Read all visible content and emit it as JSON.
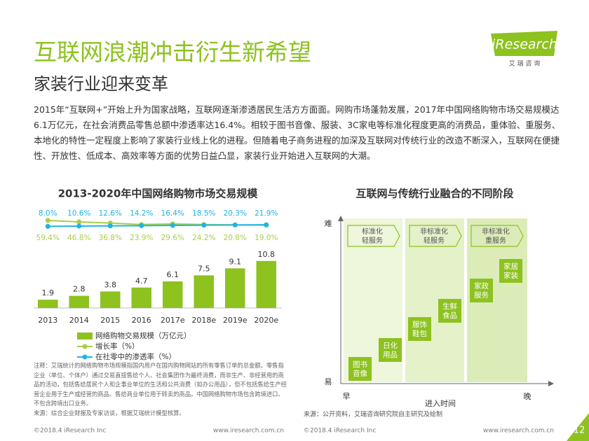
{
  "header": {
    "title": "互联网浪潮冲击衍生新希望",
    "subtitle": "家装行业迎来变革",
    "logo": "iResearch",
    "logo_sub": "艾 瑞 咨 询"
  },
  "intro": "2015年“互联网+”开始上升为国家战略，互联网逐渐渗透居民生活方方面面。网购市场蓬勃发展，2017年中国网络购物市场交易规模达6.1万亿元，在社会消费品零售总额中渗透率达16.4%。相较于图书音像、服装、3C家电等标准化程度更高的消费品，重体验、重服务、本地化的特性一定程度上影响了家装行业线上化的进程。但随着电子商务进程的加深及互联网对传统行业的改造不断深入，互联网在便捷性、开放性、低成本、高效率等方面的优势日益凸显，家装行业开始进入互联网的大潮。",
  "chart_data": {
    "type": "bar",
    "title": "2013-2020年中国网络购物市场交易规模",
    "categories": [
      "2013",
      "2014",
      "2015",
      "2016",
      "2017e",
      "2018e",
      "2019e",
      "2020e"
    ],
    "ylim": [
      0,
      22.5
    ],
    "y2lim": [
      -700,
      150
    ],
    "series": [
      {
        "name": "网络购物交易规模（万亿元）",
        "color": "#8dc21f",
        "values": [
          1.9,
          2.8,
          3.8,
          4.7,
          6.1,
          7.5,
          9.1,
          10.8
        ]
      },
      {
        "name": "增长率（%）",
        "color": "#a9cf45",
        "axis": "y2",
        "values": [
          59.4,
          46.8,
          36.8,
          23.9,
          29.6,
          24.2,
          20.8,
          19.0
        ],
        "value_labels": [
          "59.4%",
          "46.8%",
          "36.8%",
          "23.9%",
          "29.6%",
          "24.2%",
          "20.8%",
          "19.0%"
        ]
      },
      {
        "name": "在社零中的渗透率（%）",
        "color": "#1eb4e4",
        "axis": "y2",
        "values": [
          8.0,
          10.6,
          12.6,
          14.2,
          16.4,
          18.5,
          20.3,
          21.9
        ],
        "value_labels": [
          "8.0%",
          "10.6%",
          "12.6%",
          "14.2%",
          "16.4%",
          "18.5%",
          "20.3%",
          "21.9%"
        ]
      }
    ]
  },
  "notes": [
    "注释：艾瑞统计的网络购物市场规模指国内用户在国内购物网站的所有零售订单的总金额。零售指企业（单位、个体户）通过交易直接售给个人、社会集团作为最终消费，而非生产、非经营用的商品的活动，包括售给居民个人和企事业单位的生活和公共消费（如办公用品），但不包括售给生产经营企业用于生产或经营的商品、售给商业单位用于转卖的商品。中国网络购物市场包含跨境进口、不包含跨境出口业务。",
    "来源：综合企业财报及专家访谈，根据艾瑞统计模型核算。"
  ],
  "diagram": {
    "title": "互联网与传统行业融合的不同阶段",
    "y_top": "难",
    "y_bottom": "易",
    "x_left": "早",
    "x_right": "晚",
    "x_label": "进入时间",
    "stages": [
      [
        "标准化",
        "轻服务"
      ],
      [
        "非标准化",
        "轻服务"
      ],
      [
        "非标准化",
        "重服务"
      ]
    ],
    "items": [
      [
        "图书",
        "音像"
      ],
      [
        "日化",
        "用品"
      ],
      [
        "服饰",
        "鞋包"
      ],
      [
        "生鲜",
        "食品"
      ],
      [
        "家政",
        "服务"
      ],
      [
        "家居",
        "家装"
      ]
    ],
    "source": "来源：公开资料，艾瑞咨询研究院自主研究及绘制"
  },
  "footer": {
    "left_copyright": "©2018.4 iResearch Inc",
    "left_url": "www.iresearch.com.cn",
    "right_copyright": "©2018.4 iResearch Inc",
    "right_url": "www.iresearch.com.cn",
    "page": "12"
  }
}
